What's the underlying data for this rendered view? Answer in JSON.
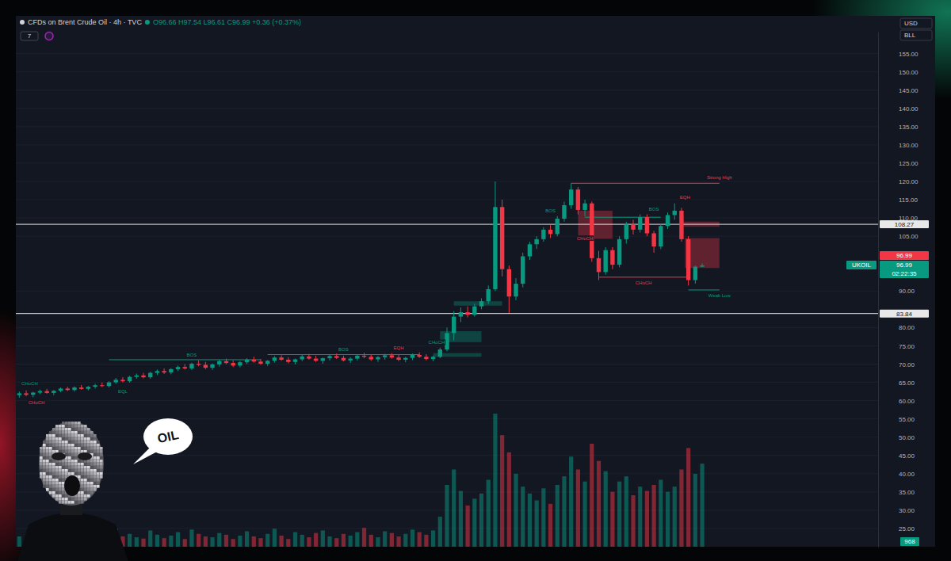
{
  "chart_data": {
    "type": "candlestick",
    "title": "CFDs on Brent Crude Oil · 4h · TVC",
    "subtitle": "O96.66 H97.54 L96.61 C96.99 +0.36 (+0.37%)",
    "x": [
      0,
      1,
      2,
      3,
      4,
      5,
      6,
      7,
      8,
      9,
      10,
      11,
      12,
      13,
      14,
      15,
      16,
      17,
      18,
      19,
      20,
      21,
      22,
      23,
      24,
      25,
      26,
      27,
      28,
      29,
      30,
      31,
      32,
      33,
      34,
      35,
      36,
      37,
      38,
      39,
      40,
      41,
      42,
      43,
      44,
      45,
      46,
      47,
      48,
      49,
      50,
      51,
      52,
      53,
      54,
      55,
      56,
      57,
      58,
      59,
      60,
      61,
      62,
      63,
      64,
      65,
      66,
      67,
      68,
      69,
      70,
      71,
      72,
      73,
      74,
      75,
      76,
      77,
      78,
      79,
      80,
      81,
      82,
      83,
      84,
      85,
      86,
      87,
      88,
      89,
      90,
      91,
      92,
      93,
      94,
      95,
      96,
      97,
      98,
      99
    ],
    "xlim": [
      -0.5,
      124.5
    ],
    "open": [
      61.5,
      62.0,
      61.6,
      62.2,
      62.6,
      62.1,
      62.7,
      63.3,
      62.9,
      63.6,
      63.2,
      63.8,
      64.2,
      64.0,
      65.0,
      65.7,
      65.3,
      66.5,
      66.9,
      66.4,
      67.6,
      68.1,
      67.7,
      68.6,
      69.2,
      68.8,
      70.1,
      69.8,
      69.0,
      69.9,
      70.8,
      70.3,
      69.6,
      70.5,
      71.2,
      70.7,
      70.1,
      70.9,
      71.8,
      71.2,
      70.6,
      71.3,
      72.1,
      71.5,
      70.9,
      71.6,
      72.2,
      71.7,
      71.0,
      71.5,
      72.3,
      72.0,
      71.3,
      71.9,
      72.4,
      71.8,
      71.2,
      71.7,
      72.5,
      72.0,
      71.4,
      72.0,
      74.0,
      78.5,
      83.0,
      84.2,
      83.5,
      85.8,
      87.2,
      90.5,
      113.0,
      96.0,
      88.5,
      92.0,
      99.5,
      102.8,
      104.2,
      106.8,
      105.6,
      109.8,
      113.5,
      117.8,
      112.2,
      114.0,
      99.0,
      95.2,
      101.2,
      97.2,
      104.2,
      108.2,
      106.8,
      110.2,
      105.8,
      102.2,
      107.8,
      110.8,
      112.0,
      104.2,
      93.0,
      96.66
    ],
    "high": [
      62.5,
      62.8,
      62.4,
      63.0,
      63.2,
      62.9,
      63.6,
      63.8,
      63.9,
      64.3,
      64.0,
      64.6,
      65.0,
      65.3,
      66.2,
      66.4,
      66.8,
      67.4,
      67.6,
      67.9,
      68.5,
      68.8,
      68.9,
      69.6,
      70.0,
      70.4,
      71.0,
      70.6,
      70.2,
      71.2,
      71.5,
      71.0,
      70.8,
      71.6,
      72.0,
      71.4,
      71.1,
      72.2,
      72.4,
      71.9,
      71.5,
      72.6,
      72.8,
      72.3,
      71.8,
      72.5,
      72.9,
      72.3,
      71.9,
      72.7,
      73.1,
      72.6,
      72.2,
      72.8,
      73.0,
      72.5,
      72.0,
      72.9,
      73.2,
      72.7,
      72.3,
      74.5,
      80.0,
      84.5,
      85.5,
      85.8,
      86.5,
      88.0,
      91.5,
      120.0,
      115.0,
      97.0,
      93.5,
      100.5,
      103.5,
      105.0,
      107.5,
      108.0,
      110.5,
      114.5,
      119.5,
      118.5,
      115.0,
      114.5,
      101.0,
      102.0,
      102.0,
      105.0,
      109.0,
      109.5,
      111.0,
      111.0,
      106.5,
      108.5,
      111.5,
      114.0,
      112.8,
      105.0,
      97.0,
      97.54
    ],
    "low": [
      60.8,
      61.2,
      60.9,
      61.8,
      61.9,
      61.5,
      62.3,
      62.6,
      62.5,
      63.0,
      62.8,
      63.3,
      63.7,
      63.6,
      64.6,
      65.0,
      64.9,
      66.0,
      66.1,
      66.0,
      67.0,
      67.3,
      67.2,
      68.1,
      68.5,
      68.4,
      69.4,
      68.6,
      68.4,
      69.3,
      70.0,
      69.2,
      69.1,
      70.0,
      70.4,
      69.8,
      69.5,
      70.4,
      70.9,
      70.2,
      69.9,
      70.8,
      71.2,
      70.6,
      70.1,
      71.0,
      71.4,
      70.7,
      70.3,
      71.0,
      71.6,
      70.9,
      70.6,
      71.2,
      71.5,
      70.8,
      70.5,
      71.1,
      71.7,
      71.0,
      70.8,
      71.6,
      73.5,
      76.5,
      81.5,
      82.8,
      83.0,
      85.0,
      86.5,
      90.0,
      94.0,
      84.0,
      87.5,
      91.0,
      98.5,
      101.5,
      103.5,
      104.5,
      105.0,
      109.0,
      112.5,
      111.0,
      110.5,
      98.0,
      93.0,
      94.5,
      96.0,
      96.5,
      103.0,
      105.5,
      106.0,
      105.0,
      100.5,
      101.5,
      107.0,
      109.5,
      103.5,
      91.5,
      92.0,
      96.61
    ],
    "close": [
      62.0,
      61.6,
      62.2,
      62.6,
      62.1,
      62.7,
      63.3,
      62.9,
      63.6,
      63.2,
      63.8,
      64.2,
      64.0,
      65.0,
      65.7,
      65.3,
      66.5,
      66.9,
      66.4,
      67.6,
      68.1,
      67.7,
      68.6,
      69.2,
      68.8,
      70.1,
      69.8,
      69.0,
      69.9,
      70.8,
      70.3,
      69.6,
      70.5,
      71.2,
      70.7,
      70.1,
      70.9,
      71.8,
      71.2,
      70.6,
      71.3,
      72.1,
      71.5,
      70.9,
      71.6,
      72.2,
      71.7,
      71.0,
      71.5,
      72.3,
      72.0,
      71.3,
      71.9,
      72.4,
      71.8,
      71.2,
      71.7,
      72.5,
      72.0,
      71.4,
      72.0,
      74.0,
      78.5,
      83.0,
      84.2,
      83.5,
      85.8,
      87.2,
      90.5,
      113.0,
      96.0,
      88.5,
      92.0,
      99.5,
      102.8,
      104.2,
      106.8,
      105.6,
      109.8,
      113.5,
      117.8,
      112.2,
      114.0,
      99.0,
      95.2,
      101.2,
      97.2,
      104.2,
      108.2,
      106.8,
      110.2,
      105.8,
      102.2,
      107.8,
      110.8,
      112.0,
      104.2,
      93.0,
      96.66,
      96.99
    ],
    "volume": [
      120,
      90,
      150,
      80,
      110,
      95,
      170,
      130,
      85,
      140,
      100,
      160,
      90,
      180,
      210,
      120,
      150,
      110,
      95,
      190,
      140,
      100,
      130,
      170,
      90,
      200,
      150,
      120,
      110,
      160,
      140,
      90,
      130,
      180,
      120,
      100,
      150,
      210,
      130,
      90,
      170,
      140,
      110,
      160,
      190,
      120,
      100,
      150,
      130,
      170,
      220,
      140,
      110,
      180,
      160,
      120,
      150,
      200,
      170,
      140,
      190,
      350,
      720,
      900,
      650,
      480,
      560,
      620,
      780,
      1550,
      1300,
      1100,
      850,
      700,
      620,
      540,
      680,
      500,
      720,
      820,
      1050,
      900,
      760,
      1200,
      1000,
      880,
      640,
      760,
      820,
      600,
      700,
      650,
      720,
      780,
      640,
      700,
      900,
      1150,
      850,
      968
    ],
    "ylim": [
      20,
      161
    ],
    "y2lim": [
      0,
      6000
    ],
    "yticks": [
      {
        "value": 25,
        "label": "25.00"
      },
      {
        "value": 30,
        "label": "30.00"
      },
      {
        "value": 35,
        "label": "35.00"
      },
      {
        "value": 40,
        "label": "40.00"
      },
      {
        "value": 45,
        "label": "45.00"
      },
      {
        "value": 50,
        "label": "50.00"
      },
      {
        "value": 55,
        "label": "55.00"
      },
      {
        "value": 60,
        "label": "60.00"
      },
      {
        "value": 65,
        "label": "65.00"
      },
      {
        "value": 70,
        "label": "70.00"
      },
      {
        "value": 75,
        "label": "75.00"
      },
      {
        "value": 80,
        "label": "80.00"
      },
      {
        "value": 90,
        "label": "90.00"
      },
      {
        "value": 105,
        "label": "105.00"
      },
      {
        "value": 110,
        "label": "110.00"
      },
      {
        "value": 115,
        "label": "115.00"
      },
      {
        "value": 120,
        "label": "120.00"
      },
      {
        "value": 125,
        "label": "125.00"
      },
      {
        "value": 130,
        "label": "130.00"
      },
      {
        "value": 135,
        "label": "135.00"
      },
      {
        "value": 140,
        "label": "140.00"
      },
      {
        "value": 145,
        "label": "145.00"
      },
      {
        "value": 150,
        "label": "150.00"
      },
      {
        "value": 155,
        "label": "155.00"
      }
    ],
    "tick_labels": "y",
    "grid": true,
    "levels": [
      {
        "value": 108.27,
        "label": "108.27"
      },
      {
        "value": 83.84,
        "label": "83.84"
      }
    ],
    "price_labels": [
      {
        "value": 96.99,
        "label": "96.99",
        "color": "#f23645"
      },
      {
        "value": 96.99,
        "label": "96.99",
        "color": "#089981",
        "symbol": "UKOIL",
        "countdown": "02:22:35"
      }
    ],
    "volume_label": "968",
    "currency": "USD",
    "unit": "BLL",
    "indicator_count": 7,
    "zones": [
      {
        "x0": 81,
        "x1": 86,
        "low": 104.3,
        "high": 112.0,
        "color": "#f23645"
      },
      {
        "x0": 96,
        "x1": 101.5,
        "low": 107.6,
        "high": 109.0,
        "color": "#f23645"
      },
      {
        "x0": 96.5,
        "x1": 101.5,
        "low": 96.3,
        "high": 104.5,
        "color": "#f23645"
      },
      {
        "x0": 61,
        "x1": 67,
        "low": 76.0,
        "high": 79.0,
        "color": "#089981"
      },
      {
        "x0": 63,
        "x1": 70,
        "low": 86.0,
        "high": 87.2,
        "color": "#089981"
      },
      {
        "x0": 60,
        "x1": 67,
        "low": 72.0,
        "high": 73.0,
        "color": "#089981"
      }
    ],
    "structure_lines": [
      {
        "x0": 80,
        "x1": 101.5,
        "value": 119.5,
        "color": "#f23645"
      },
      {
        "x0": 84,
        "x1": 97,
        "value": 93.8,
        "color": "#f23645"
      },
      {
        "x0": 97,
        "x1": 101.5,
        "value": 90.3,
        "color": "#089981"
      },
      {
        "x0": 13,
        "x1": 35,
        "value": 71.2,
        "color": "#089981"
      },
      {
        "x0": 36,
        "x1": 58,
        "value": 72.6,
        "color": "#089981"
      },
      {
        "x0": 82,
        "x1": 93,
        "value": 110.2,
        "color": "#089981"
      }
    ],
    "annotations": [
      {
        "text": "Strong High",
        "x": 101.5,
        "y": 121.0,
        "color": "#f23645"
      },
      {
        "text": "Weak Low",
        "x": 101.5,
        "y": 88.8,
        "color": "#089981"
      },
      {
        "text": "CHoCH",
        "x": 90.5,
        "y": 92.3,
        "color": "#f23645"
      },
      {
        "text": "CHoCH",
        "x": 82,
        "y": 104.5,
        "color": "#f23645"
      },
      {
        "text": "BOS",
        "x": 77,
        "y": 112.0,
        "color": "#089981"
      },
      {
        "text": "BOS",
        "x": 92,
        "y": 112.5,
        "color": "#089981"
      },
      {
        "text": "EQH",
        "x": 96.5,
        "y": 115.7,
        "color": "#f23645"
      },
      {
        "text": "CHoCH",
        "x": 1.5,
        "y": 64.8,
        "color": "#089981"
      },
      {
        "text": "CHoCH",
        "x": 2.5,
        "y": 59.5,
        "color": "#f23645"
      },
      {
        "text": "EQL",
        "x": 15,
        "y": 62.5,
        "color": "#089981"
      },
      {
        "text": "BOS",
        "x": 25,
        "y": 72.5,
        "color": "#089981"
      },
      {
        "text": "BOS",
        "x": 47,
        "y": 74.0,
        "color": "#089981"
      },
      {
        "text": "EQH",
        "x": 55,
        "y": 74.5,
        "color": "#f23645"
      },
      {
        "text": "CHoCH",
        "x": 60.5,
        "y": 76.0,
        "color": "#089981"
      }
    ]
  },
  "mascot_text": "OIL"
}
